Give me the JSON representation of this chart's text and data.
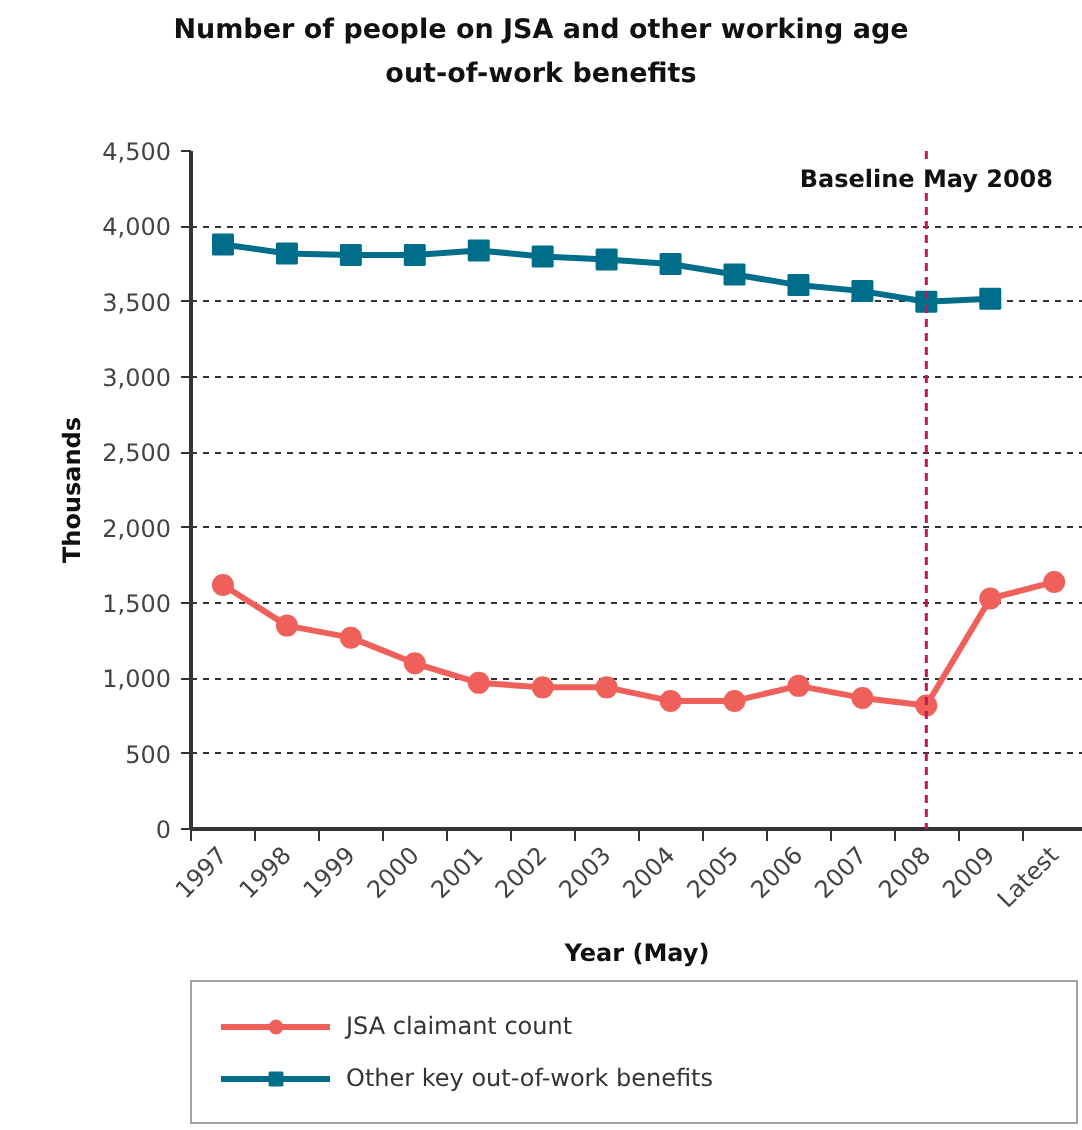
{
  "chart_data": {
    "type": "line",
    "title": "Number of people on JSA and other working age out-of-work benefits",
    "xlabel": "Year (May)",
    "ylabel": "Thousands",
    "categories": [
      "1997",
      "1998",
      "1999",
      "2000",
      "2001",
      "2002",
      "2003",
      "2004",
      "2005",
      "2006",
      "2007",
      "2008",
      "2009",
      "Latest"
    ],
    "series": [
      {
        "name": "JSA claimant count",
        "color": "#ef605a",
        "marker": "circle",
        "values": [
          1620,
          1350,
          1270,
          1100,
          970,
          940,
          940,
          850,
          850,
          950,
          870,
          820,
          1530,
          1640
        ]
      },
      {
        "name": "Other key out-of-work benefits",
        "color": "#006e8a",
        "marker": "square",
        "values": [
          3880,
          3820,
          3810,
          3810,
          3840,
          3800,
          3780,
          3750,
          3680,
          3610,
          3570,
          3500,
          3520,
          null
        ]
      }
    ],
    "ylim": [
      0,
      4500
    ],
    "yticks": [
      {
        "value": 0,
        "label": "0"
      },
      {
        "value": 500,
        "label": "500"
      },
      {
        "value": 1000,
        "label": "1,000"
      },
      {
        "value": 1500,
        "label": "1,500"
      },
      {
        "value": 2000,
        "label": "2,000"
      },
      {
        "value": 2500,
        "label": "2,500"
      },
      {
        "value": 3000,
        "label": "3,000"
      },
      {
        "value": 3500,
        "label": "3,500"
      },
      {
        "value": 4000,
        "label": "4,000"
      },
      {
        "value": 4500,
        "label": "4,500"
      }
    ],
    "ref_lines": [
      {
        "axis": "x",
        "value": "2008",
        "label": "Baseline May 2008",
        "color": "#c2185b",
        "line_style": "dashed"
      }
    ],
    "grid": "y",
    "legend": "bottom",
    "line_style": "solid"
  }
}
